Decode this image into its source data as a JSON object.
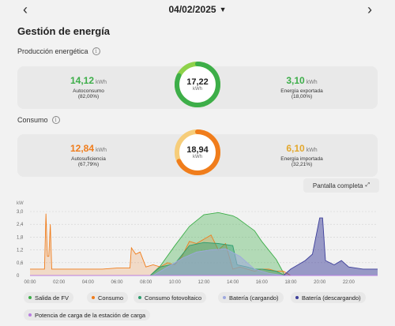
{
  "header": {
    "date": "04/02/2025",
    "prev_icon": "chevron-left-icon",
    "next_icon": "chevron-right-icon"
  },
  "page_title": "Gestión de energía",
  "production": {
    "label": "Producción energética",
    "left": {
      "value": "14,12",
      "unit": "kWh",
      "label": "Autoconsumo",
      "pct": "(82,00%)",
      "color": "#3dae49"
    },
    "center": {
      "value": "17,22",
      "unit": "kWh",
      "fraction_self": 0.82,
      "color_self": "#3dae49",
      "color_export": "#8ed24a"
    },
    "right": {
      "value": "3,10",
      "unit": "kWh",
      "label": "Energía exportada",
      "pct": "(18,00%)",
      "color": "#3dae49"
    }
  },
  "consumption": {
    "label": "Consumo",
    "left": {
      "value": "12,84",
      "unit": "kWh",
      "label": "Autosuficiencia",
      "pct": "(67,79%)",
      "color": "#f07d1c"
    },
    "center": {
      "value": "18,94",
      "unit": "kWh",
      "fraction_self": 0.6779,
      "color_self": "#f07d1c",
      "color_import": "#f6cd7a"
    },
    "right": {
      "value": "6,10",
      "unit": "kWh",
      "label": "Energía importada",
      "pct": "(32,21%)",
      "color": "#e3a82e"
    }
  },
  "fullscreen_label": "Pantalla completa",
  "chart_data": {
    "type": "area",
    "ylabel": "kW",
    "yticks": [
      "0",
      "0,6",
      "1,2",
      "1,8",
      "2,4",
      "3,0"
    ],
    "ylim": [
      0,
      3.0
    ],
    "xticks": [
      "00:00",
      "02:00",
      "04:00",
      "06:00",
      "08:00",
      "10:00",
      "12:00",
      "14:00",
      "16:00",
      "18:00",
      "20:00",
      "22:00"
    ],
    "xlim": [
      0,
      24
    ],
    "grid": true,
    "series": [
      {
        "name": "Salida de FV",
        "color": "#3dae49",
        "x": [
          8.3,
          9,
          10,
          11,
          12,
          13,
          14,
          14.3,
          15,
          15.5,
          16,
          17,
          17.6
        ],
        "values": [
          0,
          0.45,
          1.4,
          2.3,
          2.85,
          2.95,
          2.8,
          2.7,
          2.35,
          2.1,
          1.6,
          0.75,
          0
        ]
      },
      {
        "name": "Consumo",
        "color": "#f07d1c",
        "x": [
          0,
          0.5,
          1,
          1.1,
          1.2,
          1.3,
          1.4,
          1.5,
          2,
          3,
          4,
          5,
          6,
          6.9,
          7.0,
          7.3,
          7.6,
          8,
          8.5,
          9,
          9.5,
          10,
          10.5,
          11,
          11.5,
          12,
          12.5,
          13,
          13.5,
          14,
          14.5,
          15,
          15.5,
          16,
          16.5,
          17,
          17.5,
          18
        ],
        "values": [
          0.3,
          0.3,
          0.3,
          2.9,
          0.9,
          0.9,
          2.4,
          0.3,
          0.3,
          0.3,
          0.3,
          0.3,
          0.35,
          0.35,
          1.3,
          1.0,
          1.1,
          0.4,
          0.5,
          0.4,
          0.6,
          0.5,
          0.9,
          1.6,
          1.5,
          1.7,
          1.9,
          1.2,
          1.5,
          0.3,
          0.4,
          0.3,
          0.2,
          0.3,
          0.3,
          0.2,
          0.2,
          0.0
        ]
      },
      {
        "name": "Consumo fotovoltaico",
        "color": "#2e9e6f",
        "x": [
          8.3,
          9,
          10,
          11,
          12,
          13,
          14,
          14.3,
          15,
          15.5,
          16,
          17,
          17.6
        ],
        "values": [
          0,
          0.4,
          0.55,
          1.4,
          1.55,
          1.5,
          1.4,
          0.5,
          0.4,
          0.3,
          0.3,
          0.2,
          0
        ]
      },
      {
        "name": "Batería (cargando)",
        "color": "#9ea8de",
        "x": [
          8.5,
          9.5,
          10.5,
          11.5,
          12.5,
          13.5,
          14.5,
          15.5,
          16.5,
          17.5
        ],
        "values": [
          0,
          0.4,
          0.8,
          1.1,
          1.2,
          1.25,
          0.9,
          0.3,
          0.1,
          0
        ]
      },
      {
        "name": "Batería (descargando)",
        "color": "#3d3f9a",
        "x": [
          17.5,
          18,
          18.5,
          19,
          19.5,
          20,
          20.2,
          20.4,
          21,
          21.5,
          22,
          23,
          24
        ],
        "values": [
          0,
          0.3,
          0.5,
          0.7,
          1.0,
          2.7,
          2.7,
          0.7,
          0.5,
          0.7,
          0.4,
          0.3,
          0.3
        ]
      },
      {
        "name": "Potencia de carga de la estación de carga",
        "color": "#b97ee0",
        "x": [
          0,
          24
        ],
        "values": [
          0,
          0
        ]
      }
    ]
  },
  "legend": [
    {
      "label": "Salida de FV",
      "color": "#3dae49"
    },
    {
      "label": "Consumo",
      "color": "#f07d1c"
    },
    {
      "label": "Consumo fotovoltaico",
      "color": "#2e9e6f"
    },
    {
      "label": "Batería (cargando)",
      "color": "#9ea8de"
    },
    {
      "label": "Batería (descargando)",
      "color": "#3d3f9a"
    },
    {
      "label": "Potencia de carga de la estación de carga",
      "color": "#b97ee0"
    }
  ]
}
